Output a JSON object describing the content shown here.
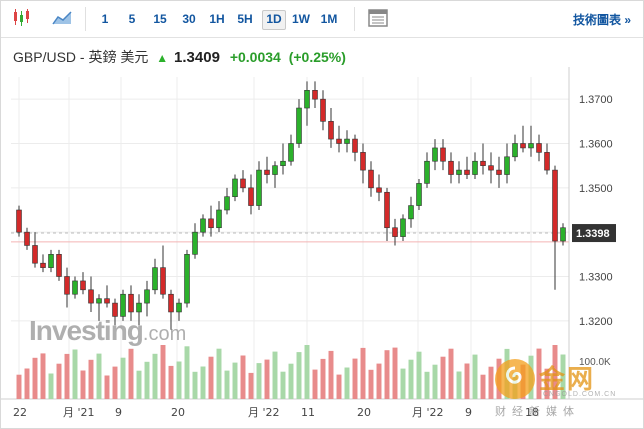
{
  "toolbar": {
    "timeframes": [
      "1",
      "5",
      "15",
      "30",
      "1H",
      "5H",
      "1D",
      "1W",
      "1M"
    ],
    "active_timeframe": "1D",
    "chart_link": "技術圖表 »"
  },
  "header": {
    "pair": "GBP/USD - 英鎊 美元",
    "price": "1.3409",
    "change": "+0.0034",
    "change_pct": "(+0.25%)"
  },
  "chart_data": {
    "type": "candlestick",
    "ylim": [
      1.315,
      1.375
    ],
    "y_ticks": [
      "1.3700",
      "1.3600",
      "1.3500",
      "1.3400",
      "1.3300",
      "1.3200"
    ],
    "current_price_label": "1.3398",
    "volume_label": "100.0K",
    "x_labels": [
      "22",
      "月 '21",
      "9",
      "20",
      "月 '22",
      "11",
      "20",
      "月 '22",
      "9",
      "18"
    ],
    "candles": [
      [
        1.345,
        1.346,
        1.339,
        1.34
      ],
      [
        1.34,
        1.341,
        1.336,
        1.337
      ],
      [
        1.337,
        1.34,
        1.332,
        1.333
      ],
      [
        1.333,
        1.335,
        1.331,
        1.332
      ],
      [
        1.332,
        1.336,
        1.331,
        1.335
      ],
      [
        1.335,
        1.336,
        1.329,
        1.33
      ],
      [
        1.33,
        1.332,
        1.323,
        1.326
      ],
      [
        1.326,
        1.33,
        1.325,
        1.329
      ],
      [
        1.329,
        1.331,
        1.326,
        1.327
      ],
      [
        1.327,
        1.33,
        1.322,
        1.324
      ],
      [
        1.324,
        1.326,
        1.32,
        1.325
      ],
      [
        1.325,
        1.328,
        1.323,
        1.324
      ],
      [
        1.324,
        1.325,
        1.319,
        1.321
      ],
      [
        1.321,
        1.327,
        1.32,
        1.326
      ],
      [
        1.326,
        1.328,
        1.32,
        1.322
      ],
      [
        1.322,
        1.326,
        1.319,
        1.324
      ],
      [
        1.324,
        1.329,
        1.321,
        1.327
      ],
      [
        1.327,
        1.334,
        1.326,
        1.332
      ],
      [
        1.332,
        1.337,
        1.325,
        1.326
      ],
      [
        1.326,
        1.327,
        1.318,
        1.322
      ],
      [
        1.322,
        1.325,
        1.32,
        1.324
      ],
      [
        1.324,
        1.336,
        1.323,
        1.335
      ],
      [
        1.335,
        1.342,
        1.334,
        1.34
      ],
      [
        1.34,
        1.344,
        1.339,
        1.343
      ],
      [
        1.343,
        1.346,
        1.339,
        1.341
      ],
      [
        1.341,
        1.347,
        1.34,
        1.345
      ],
      [
        1.345,
        1.35,
        1.344,
        1.348
      ],
      [
        1.348,
        1.353,
        1.347,
        1.352
      ],
      [
        1.352,
        1.354,
        1.349,
        1.35
      ],
      [
        1.35,
        1.353,
        1.344,
        1.346
      ],
      [
        1.346,
        1.356,
        1.345,
        1.354
      ],
      [
        1.354,
        1.357,
        1.351,
        1.353
      ],
      [
        1.353,
        1.356,
        1.35,
        1.355
      ],
      [
        1.355,
        1.36,
        1.353,
        1.356
      ],
      [
        1.356,
        1.362,
        1.355,
        1.36
      ],
      [
        1.36,
        1.37,
        1.359,
        1.368
      ],
      [
        1.368,
        1.374,
        1.364,
        1.372
      ],
      [
        1.372,
        1.374,
        1.368,
        1.37
      ],
      [
        1.37,
        1.372,
        1.363,
        1.365
      ],
      [
        1.365,
        1.368,
        1.359,
        1.361
      ],
      [
        1.361,
        1.364,
        1.358,
        1.36
      ],
      [
        1.36,
        1.363,
        1.358,
        1.361
      ],
      [
        1.361,
        1.362,
        1.356,
        1.358
      ],
      [
        1.358,
        1.36,
        1.351,
        1.354
      ],
      [
        1.354,
        1.356,
        1.348,
        1.35
      ],
      [
        1.35,
        1.353,
        1.347,
        1.349
      ],
      [
        1.349,
        1.35,
        1.338,
        1.341
      ],
      [
        1.341,
        1.343,
        1.337,
        1.339
      ],
      [
        1.339,
        1.344,
        1.338,
        1.343
      ],
      [
        1.343,
        1.348,
        1.341,
        1.346
      ],
      [
        1.346,
        1.352,
        1.345,
        1.351
      ],
      [
        1.351,
        1.358,
        1.35,
        1.356
      ],
      [
        1.356,
        1.361,
        1.354,
        1.359
      ],
      [
        1.359,
        1.361,
        1.354,
        1.356
      ],
      [
        1.356,
        1.358,
        1.351,
        1.353
      ],
      [
        1.353,
        1.356,
        1.351,
        1.354
      ],
      [
        1.354,
        1.357,
        1.352,
        1.353
      ],
      [
        1.353,
        1.358,
        1.352,
        1.356
      ],
      [
        1.356,
        1.36,
        1.353,
        1.355
      ],
      [
        1.355,
        1.358,
        1.351,
        1.354
      ],
      [
        1.354,
        1.357,
        1.35,
        1.353
      ],
      [
        1.353,
        1.36,
        1.351,
        1.357
      ],
      [
        1.357,
        1.362,
        1.356,
        1.36
      ],
      [
        1.36,
        1.364,
        1.358,
        1.359
      ],
      [
        1.359,
        1.364,
        1.357,
        1.36
      ],
      [
        1.36,
        1.362,
        1.356,
        1.358
      ],
      [
        1.358,
        1.36,
        1.353,
        1.354
      ],
      [
        1.354,
        1.355,
        1.327,
        1.338
      ],
      [
        1.338,
        1.342,
        1.337,
        1.341
      ]
    ]
  }
}
